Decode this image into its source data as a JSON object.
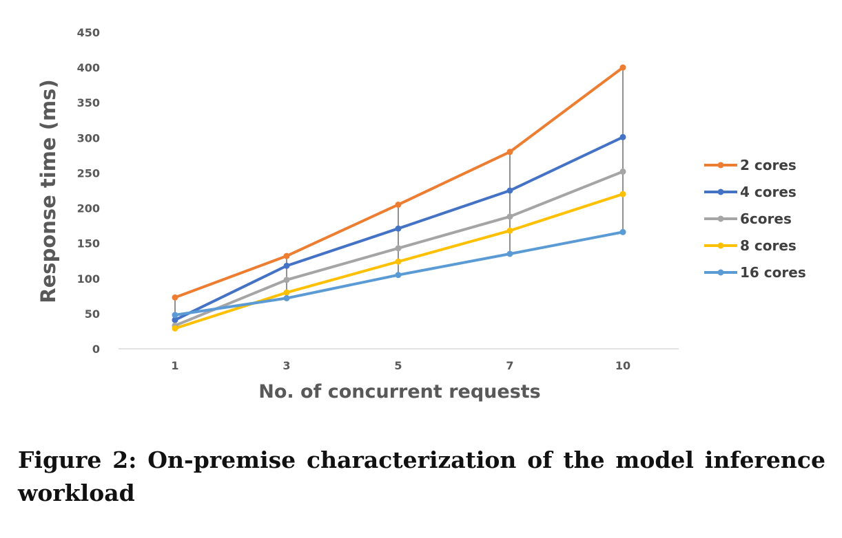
{
  "chart_data": {
    "type": "line",
    "title": "",
    "xlabel": "No. of concurrent requests",
    "ylabel": "Response time (ms)",
    "categories": [
      "1",
      "3",
      "5",
      "7",
      "10"
    ],
    "ylim": [
      0,
      450
    ],
    "yticks": [
      0,
      50,
      100,
      150,
      200,
      250,
      300,
      350,
      400,
      450
    ],
    "grid": false,
    "legend_position": "right",
    "series": [
      {
        "name": "2 cores",
        "color": "#ED7D31",
        "values": [
          73,
          132,
          205,
          280,
          400
        ]
      },
      {
        "name": "4 cores",
        "color": "#4472C4",
        "values": [
          41,
          118,
          171,
          225,
          301
        ]
      },
      {
        "name": "6cores",
        "color": "#A5A5A5",
        "values": [
          33,
          98,
          143,
          188,
          252
        ]
      },
      {
        "name": "8 cores",
        "color": "#FFC000",
        "values": [
          29,
          80,
          124,
          168,
          220
        ]
      },
      {
        "name": "16 cores",
        "color": "#5B9BD5",
        "values": [
          48,
          72,
          105,
          135,
          166
        ]
      }
    ],
    "high_low_lines": true
  },
  "caption": "Figure 2: On-premise characterization of the model inference workload"
}
